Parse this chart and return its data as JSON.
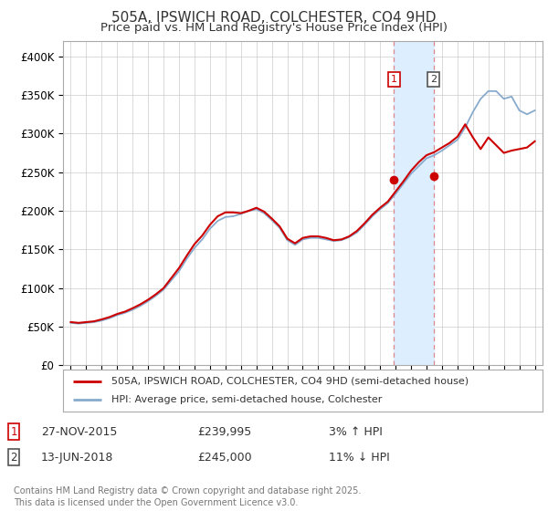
{
  "title": "505A, IPSWICH ROAD, COLCHESTER, CO4 9HD",
  "subtitle": "Price paid vs. HM Land Registry's House Price Index (HPI)",
  "title_fontsize": 11,
  "subtitle_fontsize": 9.5,
  "ylabel_ticks": [
    "£0",
    "£50K",
    "£100K",
    "£150K",
    "£200K",
    "£250K",
    "£300K",
    "£350K",
    "£400K"
  ],
  "ytick_vals": [
    0,
    50000,
    100000,
    150000,
    200000,
    250000,
    300000,
    350000,
    400000
  ],
  "ylim": [
    0,
    420000
  ],
  "xlim_start": 1994.5,
  "xlim_end": 2025.5,
  "sale1_x": 2015.9,
  "sale1_y": 239995,
  "sale2_x": 2018.45,
  "sale2_y": 245000,
  "sale1_label": "27-NOV-2015",
  "sale1_price": "£239,995",
  "sale1_hpi": "3% ↑ HPI",
  "sale2_label": "13-JUN-2018",
  "sale2_price": "£245,000",
  "sale2_hpi": "11% ↓ HPI",
  "legend_line1": "505A, IPSWICH ROAD, COLCHESTER, CO4 9HD (semi-detached house)",
  "legend_line2": "HPI: Average price, semi-detached house, Colchester",
  "footer": "Contains HM Land Registry data © Crown copyright and database right 2025.\nThis data is licensed under the Open Government Licence v3.0.",
  "line_color_red": "#cc0000",
  "line_color_blue": "#88aacc",
  "shade_color": "#ddeeff",
  "grid_color": "#cccccc",
  "background_color": "#ffffff",
  "years": [
    1995,
    1995.5,
    1996,
    1996.5,
    1997,
    1997.5,
    1998,
    1998.5,
    1999,
    1999.5,
    2000,
    2000.5,
    2001,
    2001.5,
    2002,
    2002.5,
    2003,
    2003.5,
    2004,
    2004.5,
    2005,
    2005.5,
    2006,
    2006.5,
    2007,
    2007.5,
    2008,
    2008.5,
    2009,
    2009.5,
    2010,
    2010.5,
    2011,
    2011.5,
    2012,
    2012.5,
    2013,
    2013.5,
    2014,
    2014.5,
    2015,
    2015.5,
    2016,
    2016.5,
    2017,
    2017.5,
    2018,
    2018.5,
    2019,
    2019.5,
    2020,
    2020.5,
    2021,
    2021.5,
    2022,
    2022.5,
    2023,
    2023.5,
    2024,
    2024.5,
    2025
  ],
  "hpi_vals": [
    55000,
    54000,
    55000,
    56000,
    58000,
    61000,
    65000,
    68000,
    72000,
    77000,
    83000,
    90000,
    98000,
    110000,
    122000,
    138000,
    152000,
    163000,
    177000,
    187000,
    192000,
    193000,
    196000,
    200000,
    202000,
    197000,
    188000,
    178000,
    162000,
    156000,
    163000,
    165000,
    165000,
    163000,
    161000,
    162000,
    166000,
    172000,
    182000,
    193000,
    202000,
    210000,
    222000,
    235000,
    248000,
    258000,
    268000,
    272000,
    278000,
    285000,
    292000,
    308000,
    328000,
    345000,
    355000,
    355000,
    345000,
    348000,
    330000,
    325000,
    330000
  ],
  "prop_vals": [
    56000,
    55000,
    56000,
    57000,
    59500,
    62500,
    66500,
    69500,
    74000,
    79000,
    85000,
    92000,
    100000,
    113000,
    126000,
    142000,
    157000,
    168000,
    182000,
    193000,
    198000,
    198000,
    197000,
    200000,
    204000,
    199000,
    190000,
    180000,
    164000,
    158000,
    165000,
    167000,
    167000,
    165000,
    162000,
    163000,
    167000,
    174000,
    184000,
    195000,
    204000,
    212000,
    225000,
    238000,
    252000,
    263000,
    272000,
    276000,
    282000,
    288000,
    296000,
    312000,
    295000,
    280000,
    295000,
    285000,
    275000,
    278000,
    280000,
    282000,
    290000
  ]
}
